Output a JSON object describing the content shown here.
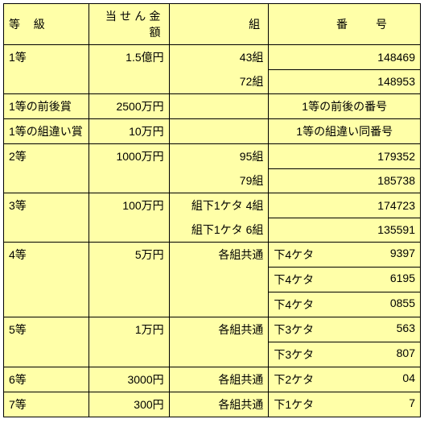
{
  "lottery_table": {
    "background_color": "#ffffa8",
    "border_color": "#000000",
    "header": {
      "grade": "等級",
      "amount": "当せん金額",
      "group": "組",
      "number": "番号"
    },
    "rows": [
      {
        "grade": "1等",
        "amount": "1.5億円",
        "group": "43組",
        "number_right": "148469",
        "span": "start"
      },
      {
        "group": "72組",
        "number_right": "148953",
        "span": "end"
      },
      {
        "grade": "1等の前後賞",
        "amount": "2500万円",
        "group": "",
        "number_center": "1等の前後の番号"
      },
      {
        "grade": "1等の組違い賞",
        "amount": "10万円",
        "group": "",
        "number_center": "1等の組違い同番号"
      },
      {
        "grade": "2等",
        "amount": "1000万円",
        "group": "95組",
        "number_right": "179352",
        "span": "start"
      },
      {
        "group": "79組",
        "number_right": "185738",
        "span": "end"
      },
      {
        "grade": "3等",
        "amount": "100万円",
        "group": "組下1ケタ 4組",
        "number_right": "174723",
        "span": "start"
      },
      {
        "group": "組下1ケタ 6組",
        "number_right": "135591",
        "span": "end"
      },
      {
        "grade": "4等",
        "amount": "5万円",
        "group": "各組共通",
        "number_left": "下4ケタ",
        "number_right": "9397",
        "span": "start"
      },
      {
        "number_left": "下4ケタ",
        "number_right": "6195",
        "span": "mid"
      },
      {
        "number_left": "下4ケタ",
        "number_right": "0855",
        "span": "end"
      },
      {
        "grade": "5等",
        "amount": "1万円",
        "group": "各組共通",
        "number_left": "下3ケタ",
        "number_right": "563",
        "span": "start"
      },
      {
        "number_left": "下3ケタ",
        "number_right": "807",
        "span": "end"
      },
      {
        "grade": "6等",
        "amount": "3000円",
        "group": "各組共通",
        "number_left": "下2ケタ",
        "number_right": "04"
      },
      {
        "grade": "7等",
        "amount": "300円",
        "group": "各組共通",
        "number_left": "下1ケタ",
        "number_right": "7"
      }
    ]
  }
}
